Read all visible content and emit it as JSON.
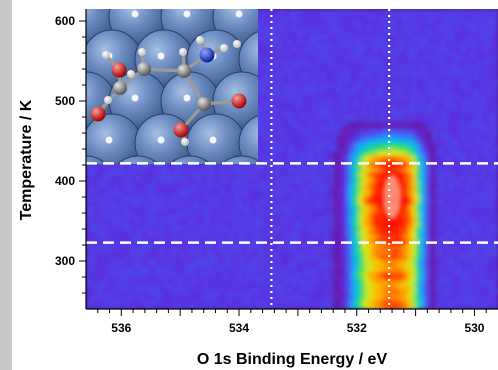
{
  "chart_data": {
    "type": "heatmap",
    "title": "",
    "xlabel": "O 1s Binding Energy / eV",
    "ylabel": "Temperature / K",
    "x_range": [
      536.6,
      529.6
    ],
    "y_range": [
      240,
      615
    ],
    "x_direction": "decreasing",
    "x_ticks": [
      536,
      534,
      532,
      530
    ],
    "x_tick_labels": [
      "536",
      "534",
      "532",
      "530"
    ],
    "y_ticks": [
      300,
      400,
      500,
      600
    ],
    "y_tick_labels": [
      "300",
      "400",
      "500",
      "600"
    ],
    "colormap": [
      "#3a0f6e",
      "#4a1585",
      "#6a1ab0",
      "#5a30e0",
      "#2f7cff",
      "#00c6e8",
      "#1ed86a",
      "#d8ef1c",
      "#ffaa00",
      "#ff2a00",
      "#ff0000"
    ],
    "background_color": "#4a1585",
    "peak": {
      "center_energy": 531.4,
      "onset_energy": 533.4,
      "max_temperature": 450,
      "intensity_max_temperature": 380
    },
    "reference_lines": {
      "horizontal_dashed": [
        323,
        422
      ],
      "vertical_dotted": [
        533.45,
        531.45
      ],
      "color": "#ffffff"
    },
    "inset": {
      "description_icon": "molecular-model-on-surface",
      "x_range": [
        536.6,
        533.45
      ],
      "y_range": [
        422,
        615
      ],
      "surface_color": "#5c7fb5",
      "atoms": {
        "carbon": "#8e8e8e",
        "oxygen": "#e0101c",
        "nitrogen": "#1030d8",
        "hydrogen": "#f2f2f2"
      }
    }
  }
}
